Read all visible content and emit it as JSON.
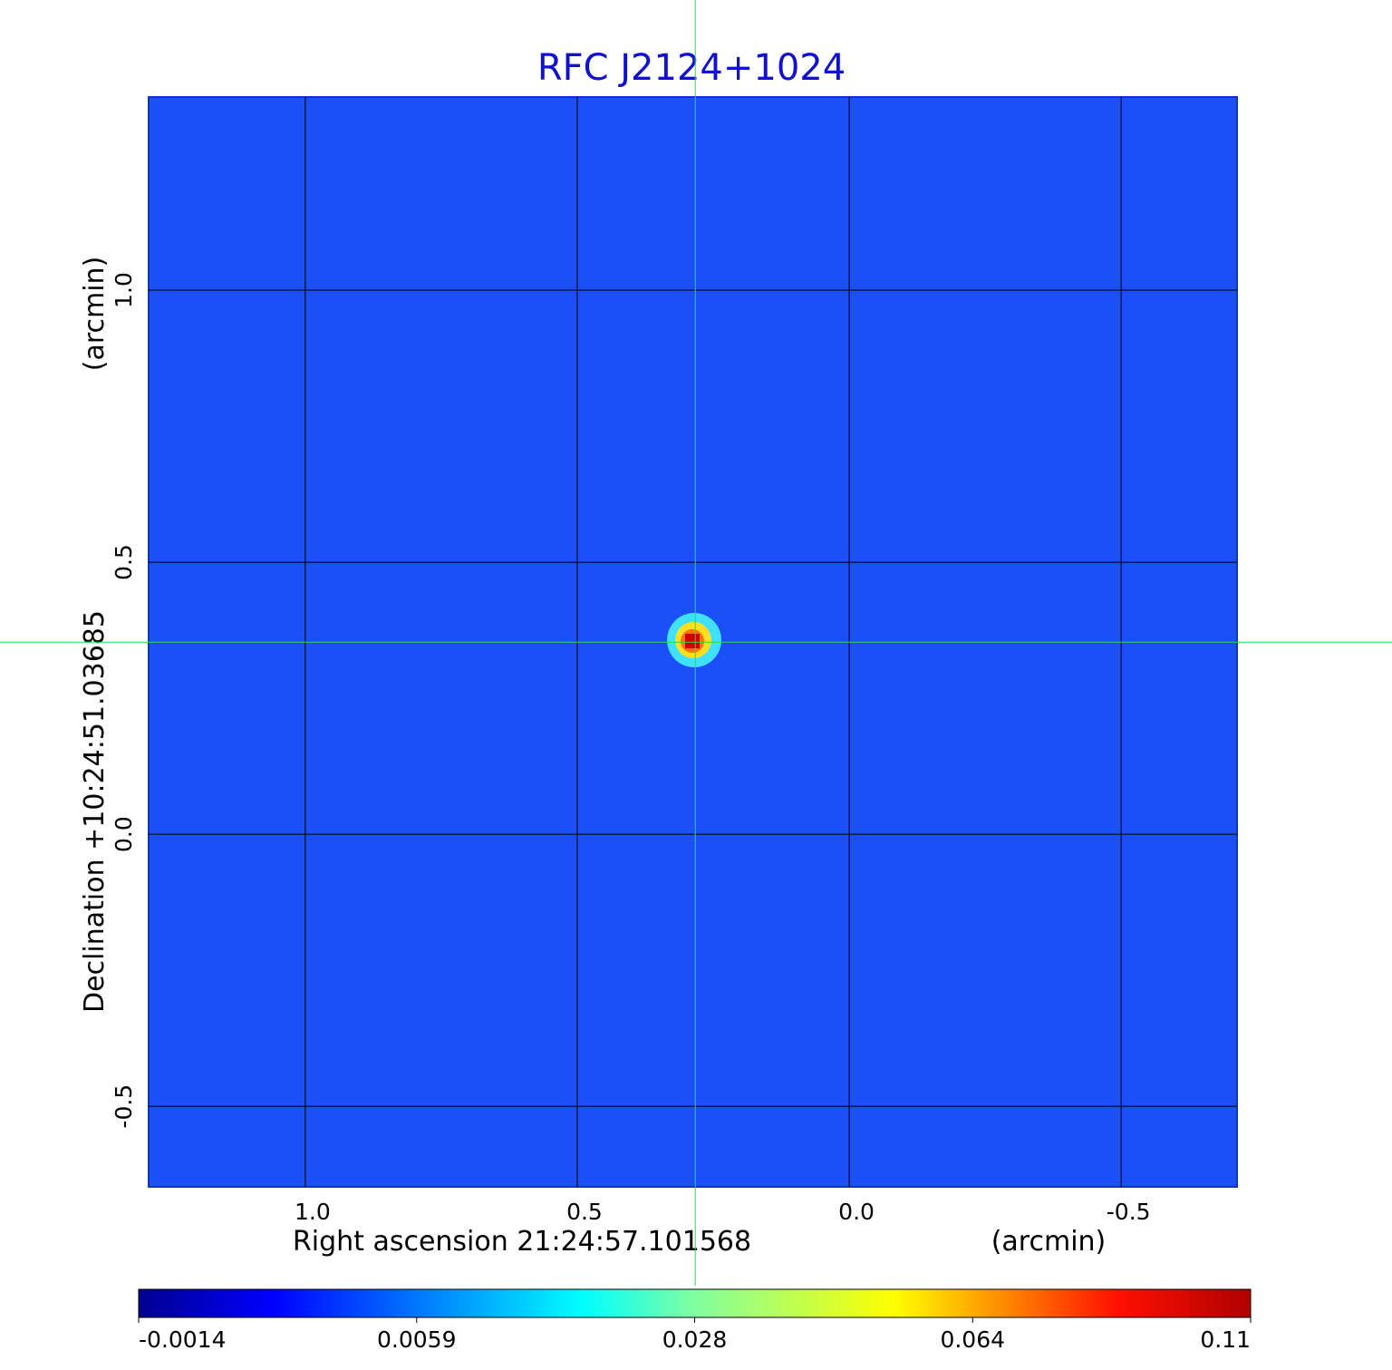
{
  "chart_data": {
    "type": "image",
    "title": "RFC J2124+1024",
    "x_label": "Right ascension  21:24:57.101568",
    "x_unit": "(arcmin)",
    "y_label": "Declination  +10:24:51.03685",
    "y_unit": "(arcmin)",
    "xlim": [
      1.288,
      -0.713
    ],
    "ylim": [
      -0.648,
      1.355
    ],
    "xticks": [
      {
        "value": 1,
        "label": "1.0"
      },
      0.5,
      {
        "value": 0,
        "label": "0.0"
      },
      -0.5
    ],
    "yticks": [
      {
        "value": 1,
        "label": "1.0"
      },
      0.5,
      {
        "value": 0,
        "label": "0.0"
      },
      -0.5
    ],
    "grid": true,
    "marker": {
      "x": 0.283,
      "y": 0.353
    },
    "colorbar_ticks": [
      -0.0014,
      0.0059,
      0.028,
      0.064,
      0.11
    ]
  }
}
